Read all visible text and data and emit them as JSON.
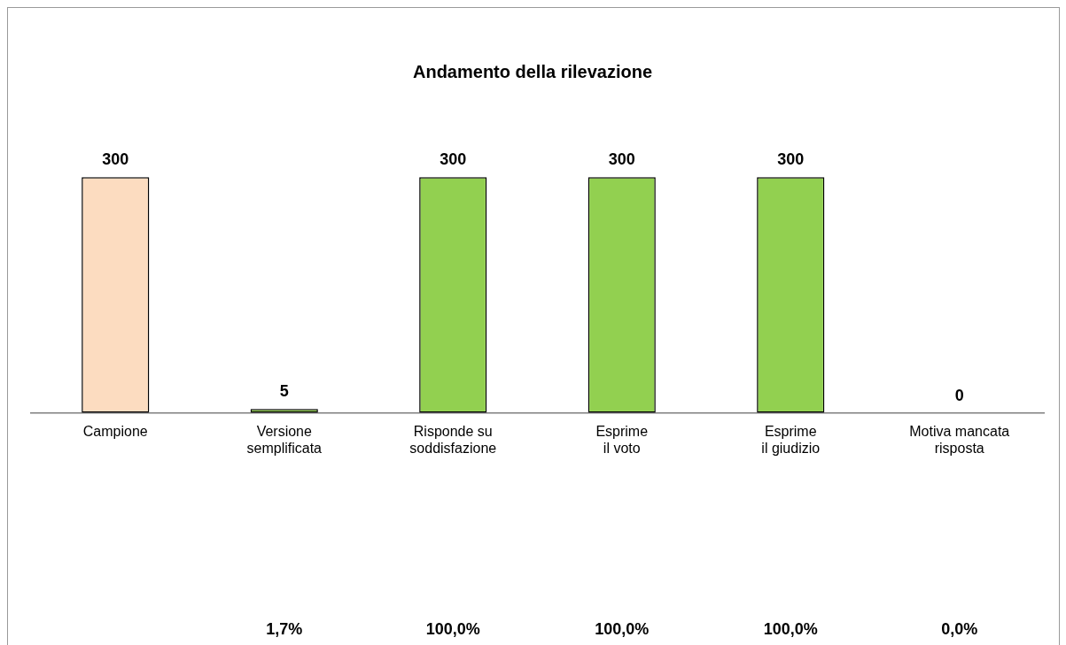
{
  "chart_data": {
    "type": "bar",
    "title": "Andamento della rilevazione",
    "categories": [
      "Campione",
      "Versione\nsemplificata",
      "Risponde su\nsoddisfazione",
      "Esprime\nil voto",
      "Esprime\nil giudizio",
      "Motiva mancata\nrisposta"
    ],
    "values": [
      300,
      5,
      300,
      300,
      300,
      0
    ],
    "colors": [
      "#fcdcc0",
      "#92d050",
      "#92d050",
      "#92d050",
      "#92d050",
      "#92d050"
    ],
    "data_labels": true,
    "tick_labels": "x",
    "grid": false,
    "legend": false,
    "annotations": [
      "1,7%",
      "100,0%",
      "100,0%",
      "100,0%",
      "0,0%"
    ]
  }
}
